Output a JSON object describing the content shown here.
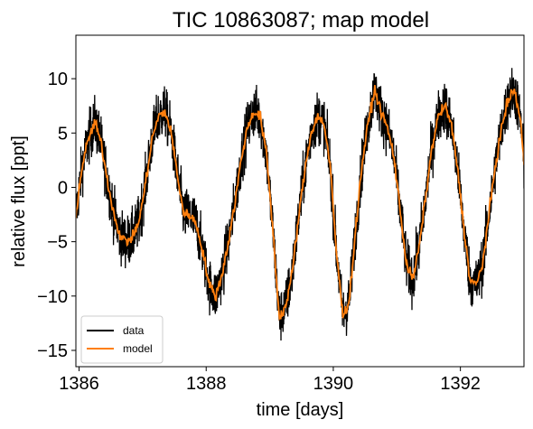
{
  "chart_data": {
    "type": "line",
    "title": "TIC 10863087; map model",
    "xlabel": "time [days]",
    "ylabel": "relative flux [ppt]",
    "xlim": [
      1385.95,
      1393.0
    ],
    "ylim": [
      -16.5,
      14.0
    ],
    "xticks": [
      1386,
      1388,
      1390,
      1392
    ],
    "xtick_labels": [
      "1386",
      "1388",
      "1390",
      "1392"
    ],
    "yticks": [
      -15,
      -10,
      -5,
      0,
      5,
      10
    ],
    "ytick_labels": [
      "−15",
      "−10",
      "−5",
      "0",
      "5",
      "10"
    ],
    "grid": false,
    "legend_position": "lower-left",
    "series": [
      {
        "name": "data",
        "color": "#000000",
        "style": "noisy-line",
        "noise_amplitude_ppt": 2.0,
        "follows": "model"
      },
      {
        "name": "model",
        "color": "#ff7f0e",
        "x": [
          1385.95,
          1386.05,
          1386.15,
          1386.25,
          1386.35,
          1386.45,
          1386.55,
          1386.65,
          1386.75,
          1386.85,
          1386.95,
          1387.05,
          1387.15,
          1387.25,
          1387.35,
          1387.45,
          1387.55,
          1387.65,
          1387.75,
          1387.85,
          1387.95,
          1388.05,
          1388.15,
          1388.25,
          1388.35,
          1388.45,
          1388.55,
          1388.65,
          1388.75,
          1388.85,
          1388.95,
          1389.05,
          1389.15,
          1389.25,
          1389.35,
          1389.45,
          1389.55,
          1389.65,
          1389.75,
          1389.85,
          1389.95,
          1390.05,
          1390.15,
          1390.25,
          1390.35,
          1390.45,
          1390.55,
          1390.65,
          1390.75,
          1390.85,
          1390.95,
          1391.05,
          1391.15,
          1391.25,
          1391.35,
          1391.45,
          1391.55,
          1391.65,
          1391.75,
          1391.85,
          1391.95,
          1392.05,
          1392.15,
          1392.25,
          1392.35,
          1392.45,
          1392.55,
          1392.65,
          1392.75,
          1392.85,
          1392.95,
          1393.0
        ],
        "values": [
          -2.5,
          2.0,
          4.5,
          6.0,
          4.0,
          0.5,
          -2.5,
          -4.5,
          -5.0,
          -4.5,
          -3.0,
          0.5,
          4.5,
          6.5,
          7.0,
          5.0,
          1.0,
          -2.5,
          -2.5,
          -3.5,
          -6.0,
          -9.0,
          -10.0,
          -8.0,
          -5.0,
          -1.5,
          2.5,
          5.5,
          7.0,
          6.5,
          3.0,
          -4.0,
          -12.0,
          -11.0,
          -8.0,
          -3.0,
          1.5,
          5.0,
          6.5,
          6.0,
          2.0,
          -6.0,
          -11.8,
          -10.5,
          -4.0,
          2.0,
          6.0,
          9.0,
          7.0,
          5.5,
          3.0,
          -2.0,
          -7.0,
          -8.5,
          -5.5,
          -1.0,
          3.5,
          6.5,
          7.5,
          6.0,
          2.0,
          -3.5,
          -8.5,
          -9.0,
          -7.0,
          -2.5,
          2.0,
          5.5,
          8.0,
          9.0,
          6.0,
          2.0
        ]
      }
    ]
  }
}
